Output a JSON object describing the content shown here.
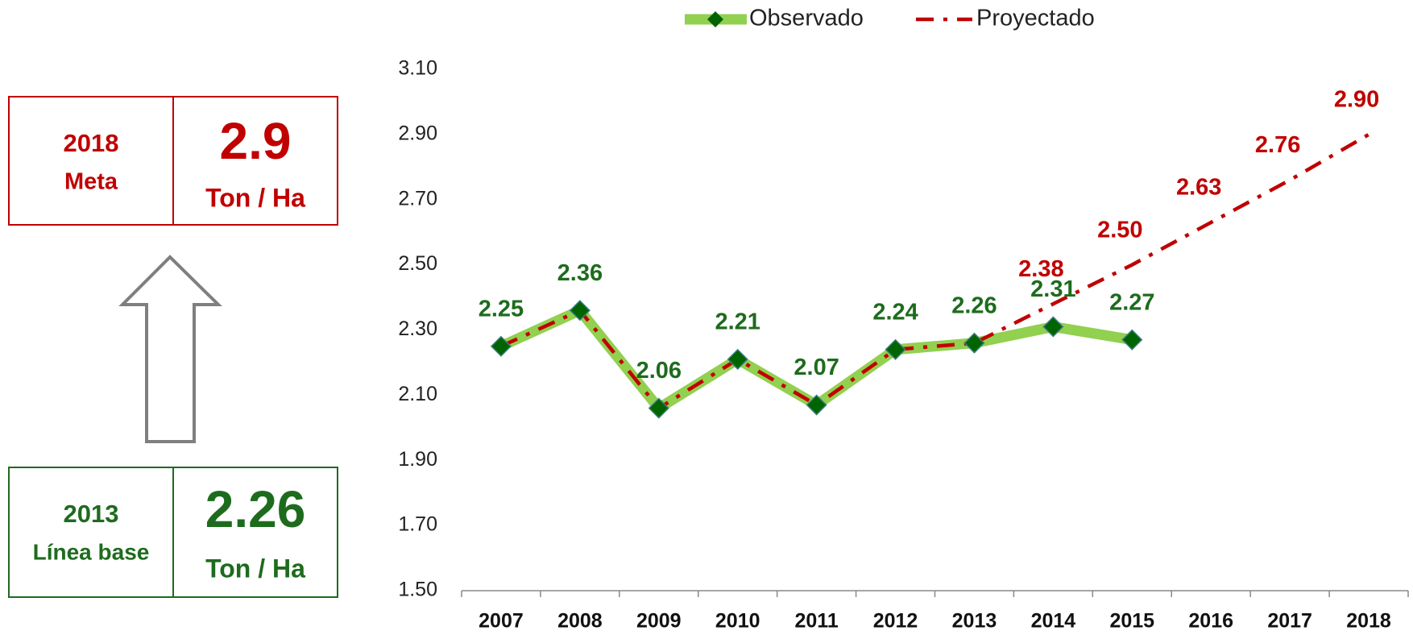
{
  "chart_data": {
    "type": "line",
    "categories": [
      "2007",
      "2008",
      "2009",
      "2010",
      "2011",
      "2012",
      "2013",
      "2014",
      "2015",
      "2016",
      "2017",
      "2018"
    ],
    "series": [
      {
        "name": "Observado",
        "color": "#92d050",
        "marker_color": "#006400",
        "values": [
          2.25,
          2.36,
          2.06,
          2.21,
          2.07,
          2.24,
          2.26,
          2.31,
          2.27,
          null,
          null,
          null
        ]
      },
      {
        "name": "Proyectado",
        "color": "#c00000",
        "values": [
          2.25,
          2.36,
          2.06,
          2.21,
          2.07,
          2.24,
          2.26,
          2.38,
          2.5,
          2.63,
          2.76,
          2.9
        ],
        "value_labels": [
          null,
          null,
          null,
          null,
          null,
          null,
          null,
          "2.38",
          "2.50",
          "2.63",
          "2.76",
          "2.90"
        ]
      }
    ],
    "ylim": [
      1.5,
      3.1
    ],
    "yticks": [
      {
        "value": 1.5,
        "label": "1.50"
      },
      {
        "value": 1.7,
        "label": "1.70"
      },
      {
        "value": 1.9,
        "label": "1.90"
      },
      {
        "value": 2.1,
        "label": "2.10"
      },
      {
        "value": 2.3,
        "label": "2.30"
      },
      {
        "value": 2.5,
        "label": "2.50"
      },
      {
        "value": 2.7,
        "label": "2.70"
      },
      {
        "value": 2.9,
        "label": "2.90"
      },
      {
        "value": 3.1,
        "label": "3.10"
      }
    ],
    "grid": false,
    "legend": "top"
  },
  "panel": {
    "goal": {
      "year": "2018",
      "label": "Meta",
      "value": "2.9",
      "unit": "Ton / Ha"
    },
    "baseline": {
      "year": "2013",
      "label": "Línea base",
      "value": "2.26",
      "unit": "Ton / Ha"
    }
  }
}
